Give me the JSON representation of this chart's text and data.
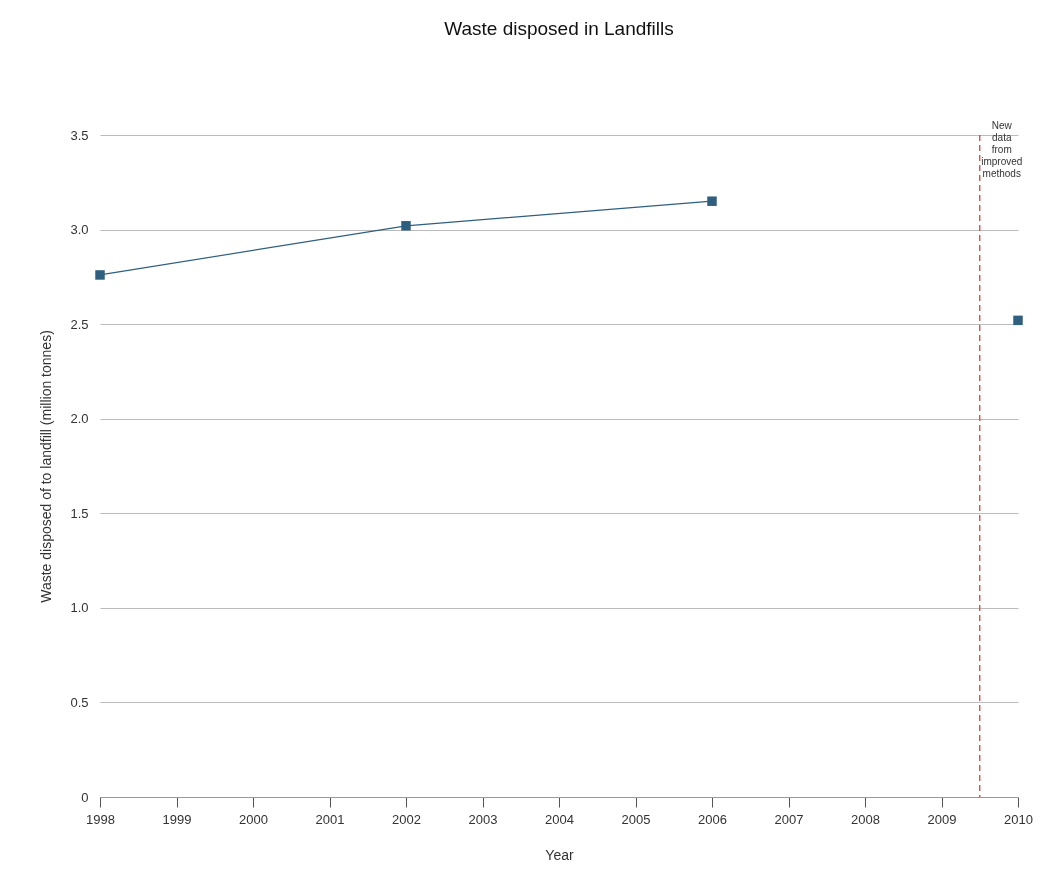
{
  "chart_data": {
    "type": "line",
    "title": "Waste disposed in Landfills",
    "xlabel": "Year",
    "ylabel": "Waste disposed of to landfill (million tonnes)",
    "series": [
      {
        "color": "#2e5f7f",
        "x": [
          1998,
          2002,
          2006
        ],
        "values": [
          2.76,
          3.02,
          3.15
        ]
      },
      {
        "type": "scatter",
        "color": "#2e5f7f",
        "x": [
          2010
        ],
        "values": [
          2.52
        ]
      }
    ],
    "xlim": [
      1998,
      2010
    ],
    "xticks": [
      1998,
      1999,
      2000,
      2001,
      2002,
      2003,
      2004,
      2005,
      2006,
      2007,
      2008,
      2009,
      2010
    ],
    "ylim": [
      0,
      3.5
    ],
    "yticks": [
      0,
      0.5,
      {
        "value": 1,
        "label": "1.0"
      },
      1.5,
      {
        "value": 2,
        "label": "2.0"
      },
      2.5,
      {
        "value": 3,
        "label": "3.0"
      },
      3.5
    ],
    "ref_lines": [
      {
        "axis": "x",
        "value": 2009.5,
        "label": "New data from improved methods",
        "color": "#d9413a",
        "line_style": "dashed"
      }
    ],
    "grid": "y",
    "marker": "square"
  }
}
